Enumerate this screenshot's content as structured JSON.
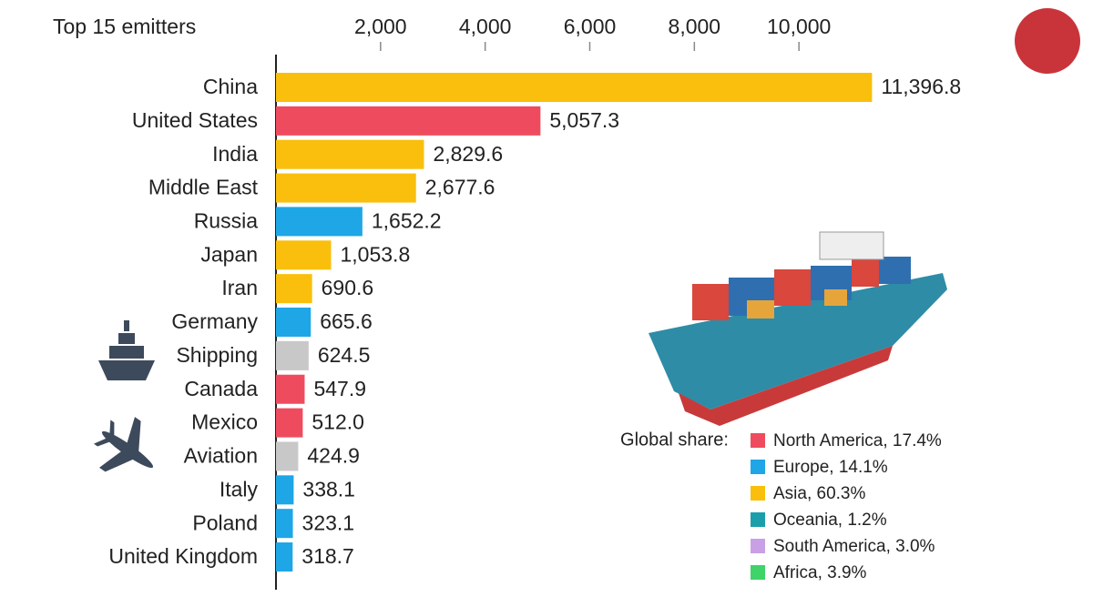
{
  "chart_data": {
    "type": "bar",
    "orientation": "horizontal",
    "title": "Top 15 emitters",
    "categories": [
      "China",
      "United States",
      "India",
      "Middle East",
      "Russia",
      "Japan",
      "Iran",
      "Germany",
      "Shipping",
      "Canada",
      "Mexico",
      "Aviation",
      "Italy",
      "Poland",
      "United Kingdom"
    ],
    "values": [
      11396.8,
      5057.3,
      2829.6,
      2677.6,
      1652.2,
      1053.8,
      690.6,
      665.6,
      624.5,
      547.9,
      512.0,
      424.9,
      338.1,
      323.1,
      318.7
    ],
    "value_labels": [
      "11,396.8",
      "5,057.3",
      "2,829.6",
      "2,677.6",
      "1,652.2",
      "1,053.8",
      "690.6",
      "665.6",
      "624.5",
      "547.9",
      "512.0",
      "424.9",
      "338.1",
      "323.1",
      "318.7"
    ],
    "colors": [
      "#f9bf0c",
      "#ee4c5e",
      "#f9bf0c",
      "#f9bf0c",
      "#1ea6e6",
      "#f9bf0c",
      "#f9bf0c",
      "#1ea6e6",
      "#c8c8c8",
      "#ee4c5e",
      "#ee4c5e",
      "#c8c8c8",
      "#1ea6e6",
      "#1ea6e6",
      "#1ea6e6"
    ],
    "xlim": [
      0,
      12000
    ],
    "xticks": [
      {
        "value": 2000,
        "label": "2,000"
      },
      {
        "value": 4000,
        "label": "4,000"
      },
      {
        "value": 6000,
        "label": "6,000"
      },
      {
        "value": 8000,
        "label": "8,000"
      },
      {
        "value": 10000,
        "label": "10,000"
      }
    ],
    "legend": {
      "title": "Global share:",
      "items": [
        {
          "name": "North America, 17.4%",
          "color": "#ee4c5e"
        },
        {
          "name": "Europe, 14.1%",
          "color": "#1ea6e6"
        },
        {
          "name": "Asia, 60.3%",
          "color": "#f9bf0c"
        },
        {
          "name": "Oceania, 1.2%",
          "color": "#1a9eac"
        },
        {
          "name": "South America, 3.0%",
          "color": "#c9a0e6"
        },
        {
          "name": "Africa, 3.9%",
          "color": "#3fd36a"
        }
      ]
    }
  }
}
